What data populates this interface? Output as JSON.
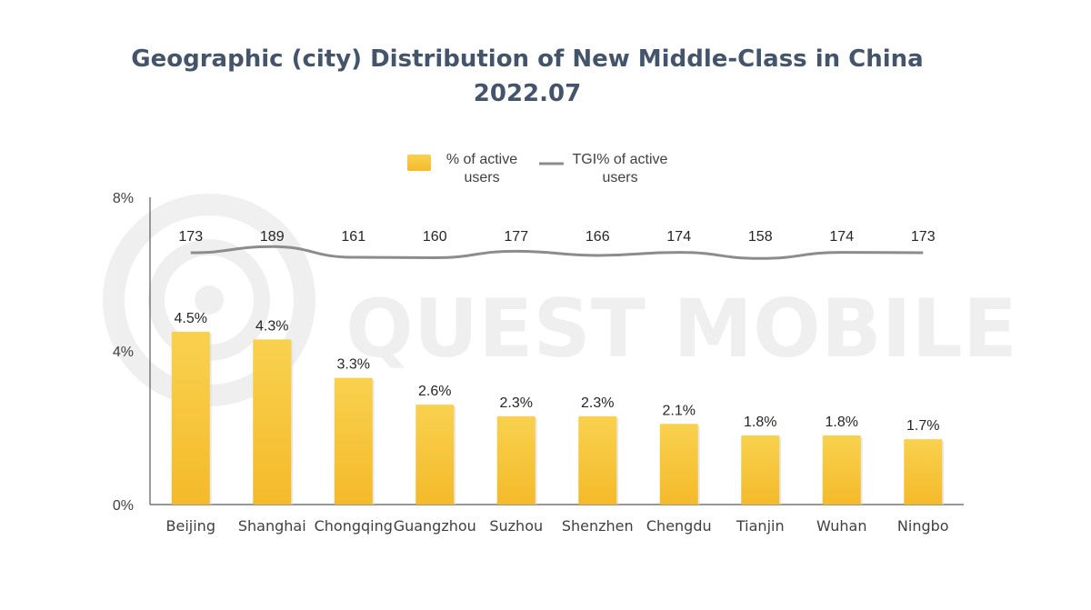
{
  "chart_data": {
    "type": "bar",
    "title": "Geographic (city) Distribution of New Middle-Class in China",
    "subtitle": "2022.07",
    "categories": [
      "Beijing",
      "Shanghai",
      "Chongqing",
      "Guangzhou",
      "Suzhou",
      "Shenzhen",
      "Chengdu",
      "Tianjin",
      "Wuhan",
      "Ningbo"
    ],
    "series": [
      {
        "name": "% of active users",
        "chart_type": "bar",
        "values": [
          4.5,
          4.3,
          3.3,
          2.6,
          2.3,
          2.3,
          2.1,
          1.8,
          1.8,
          1.7
        ],
        "labels": [
          "4.5%",
          "4.3%",
          "3.3%",
          "2.6%",
          "2.3%",
          "2.3%",
          "2.1%",
          "1.8%",
          "1.8%",
          "1.7%"
        ],
        "color": "#f5c232"
      },
      {
        "name": "TGI% of active users",
        "chart_type": "line",
        "values": [
          173,
          189,
          161,
          160,
          177,
          166,
          174,
          158,
          174,
          173
        ],
        "labels": [
          "173",
          "189",
          "161",
          "160",
          "177",
          "166",
          "174",
          "158",
          "174",
          "173"
        ],
        "color": "#8c8c8c"
      }
    ],
    "y_ticks": [
      "0%",
      "4%",
      "8%"
    ],
    "ylim": [
      0,
      8
    ],
    "legend_position": "top",
    "legend": {
      "bar_line1": "% of active",
      "bar_line2": "users",
      "line_line1": "TGI% of active",
      "line_line2": "users"
    },
    "watermark": "QUEST MOBILE"
  }
}
